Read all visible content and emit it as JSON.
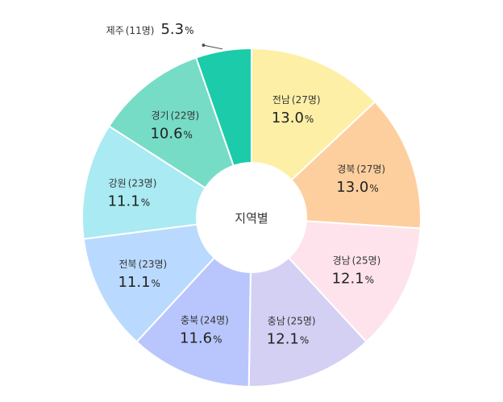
{
  "chart_data": {
    "type": "pie",
    "center_label": "지역별",
    "slices": [
      {
        "name": "전남",
        "count_label": "(27명)",
        "value": 13.0,
        "pct": "13.0",
        "unit": "%",
        "color": "#FDF0A6"
      },
      {
        "name": "경북",
        "count_label": "(27명)",
        "value": 13.0,
        "pct": "13.0",
        "unit": "%",
        "color": "#FECF9E"
      },
      {
        "name": "경남",
        "count_label": "(25명)",
        "value": 12.1,
        "pct": "12.1",
        "unit": "%",
        "color": "#FEE3EC"
      },
      {
        "name": "충남",
        "count_label": "(25명)",
        "value": 12.1,
        "pct": "12.1",
        "unit": "%",
        "color": "#D3D0F4"
      },
      {
        "name": "충북",
        "count_label": "(24명)",
        "value": 11.6,
        "pct": "11.6",
        "unit": "%",
        "color": "#B9C6FD"
      },
      {
        "name": "전북",
        "count_label": "(23명)",
        "value": 11.1,
        "pct": "11.1",
        "unit": "%",
        "color": "#B9DAFE"
      },
      {
        "name": "강원",
        "count_label": "(23명)",
        "value": 11.1,
        "pct": "11.1",
        "unit": "%",
        "color": "#AAEAF2"
      },
      {
        "name": "경기",
        "count_label": "(22명)",
        "value": 10.6,
        "pct": "10.6",
        "unit": "%",
        "color": "#76DCC6"
      },
      {
        "name": "제주",
        "count_label": "(11명)",
        "value": 5.3,
        "pct": "5.3",
        "unit": "%",
        "color": "#1CCBA9"
      }
    ]
  }
}
